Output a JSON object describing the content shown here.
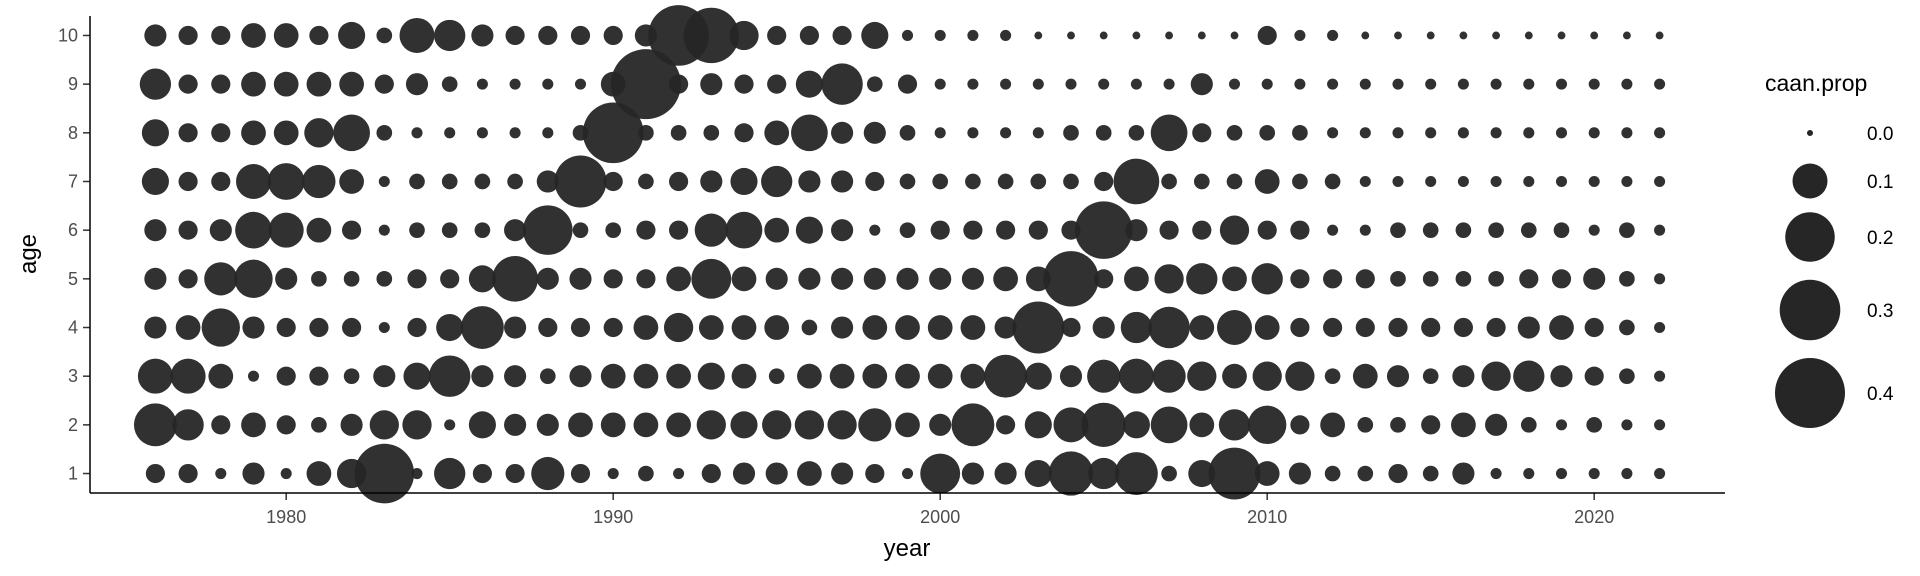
{
  "chart_data": {
    "type": "scatter",
    "xlabel": "year",
    "ylabel": "age",
    "xlim": [
      1974,
      2024
    ],
    "ylim": [
      0.6,
      10.4
    ],
    "x_ticks": [
      1980,
      1990,
      2000,
      2010,
      2020
    ],
    "y_ticks": [
      1,
      2,
      3,
      4,
      5,
      6,
      7,
      8,
      9,
      10
    ],
    "years": [
      1976,
      1977,
      1978,
      1979,
      1980,
      1981,
      1982,
      1983,
      1984,
      1985,
      1986,
      1987,
      1988,
      1989,
      1990,
      1991,
      1992,
      1993,
      1994,
      1995,
      1996,
      1997,
      1998,
      1999,
      2000,
      2001,
      2002,
      2003,
      2004,
      2005,
      2006,
      2007,
      2008,
      2009,
      2010,
      2011,
      2012,
      2013,
      2014,
      2015,
      2016,
      2017,
      2018,
      2019,
      2020,
      2021,
      2022
    ],
    "ages": [
      1,
      2,
      3,
      4,
      5,
      6,
      7,
      8,
      9,
      10
    ],
    "size_variable": "caan.prop",
    "color": "#262626",
    "legend": {
      "title": "caan.prop",
      "position": "right",
      "breaks": [
        0.0,
        0.1,
        0.2,
        0.3,
        0.4
      ],
      "labels": [
        "0.0",
        "0.1",
        "0.2",
        "0.3",
        "0.4"
      ]
    },
    "caan_prop_by_age": [
      [
        0.03,
        0.03,
        0.01,
        0.04,
        0.01,
        0.05,
        0.07,
        0.29,
        0.01,
        0.08,
        0.03,
        0.03,
        0.09,
        0.03,
        0.01,
        0.02,
        0.01,
        0.03,
        0.04,
        0.04,
        0.05,
        0.04,
        0.03,
        0.01,
        0.13,
        0.04,
        0.04,
        0.06,
        0.16,
        0.08,
        0.15,
        0.02,
        0.06,
        0.22,
        0.05,
        0.04,
        0.02,
        0.02,
        0.03,
        0.02,
        0.04,
        0.01,
        0.01,
        0.01,
        0.01,
        0.01,
        0.01
      ],
      [
        0.15,
        0.08,
        0.03,
        0.05,
        0.03,
        0.02,
        0.04,
        0.07,
        0.07,
        0.01,
        0.06,
        0.04,
        0.04,
        0.05,
        0.05,
        0.05,
        0.05,
        0.07,
        0.06,
        0.07,
        0.07,
        0.07,
        0.09,
        0.05,
        0.04,
        0.15,
        0.03,
        0.06,
        0.1,
        0.16,
        0.06,
        0.11,
        0.05,
        0.08,
        0.12,
        0.03,
        0.05,
        0.02,
        0.02,
        0.03,
        0.05,
        0.04,
        0.02,
        0.01,
        0.02,
        0.01,
        0.01
      ],
      [
        0.1,
        0.1,
        0.05,
        0.01,
        0.03,
        0.03,
        0.02,
        0.04,
        0.06,
        0.14,
        0.04,
        0.04,
        0.02,
        0.04,
        0.05,
        0.05,
        0.05,
        0.06,
        0.05,
        0.02,
        0.05,
        0.05,
        0.05,
        0.05,
        0.05,
        0.05,
        0.15,
        0.06,
        0.04,
        0.09,
        0.1,
        0.09,
        0.07,
        0.05,
        0.07,
        0.07,
        0.02,
        0.05,
        0.04,
        0.02,
        0.04,
        0.07,
        0.08,
        0.04,
        0.03,
        0.02,
        0.01
      ],
      [
        0.04,
        0.05,
        0.12,
        0.04,
        0.03,
        0.03,
        0.03,
        0.01,
        0.03,
        0.06,
        0.15,
        0.04,
        0.03,
        0.03,
        0.03,
        0.05,
        0.07,
        0.05,
        0.05,
        0.05,
        0.02,
        0.04,
        0.05,
        0.05,
        0.05,
        0.05,
        0.04,
        0.22,
        0.03,
        0.04,
        0.08,
        0.14,
        0.05,
        0.1,
        0.05,
        0.03,
        0.03,
        0.03,
        0.03,
        0.03,
        0.03,
        0.03,
        0.04,
        0.05,
        0.03,
        0.02,
        0.01
      ],
      [
        0.04,
        0.03,
        0.09,
        0.12,
        0.04,
        0.02,
        0.02,
        0.02,
        0.03,
        0.03,
        0.06,
        0.17,
        0.04,
        0.04,
        0.03,
        0.03,
        0.05,
        0.13,
        0.05,
        0.04,
        0.04,
        0.04,
        0.04,
        0.04,
        0.04,
        0.04,
        0.05,
        0.05,
        0.25,
        0.03,
        0.05,
        0.07,
        0.08,
        0.05,
        0.08,
        0.03,
        0.03,
        0.03,
        0.02,
        0.02,
        0.02,
        0.02,
        0.03,
        0.03,
        0.04,
        0.02,
        0.01
      ],
      [
        0.04,
        0.03,
        0.04,
        0.11,
        0.1,
        0.05,
        0.03,
        0.01,
        0.02,
        0.02,
        0.02,
        0.04,
        0.2,
        0.02,
        0.02,
        0.03,
        0.03,
        0.09,
        0.11,
        0.05,
        0.06,
        0.04,
        0.01,
        0.02,
        0.03,
        0.03,
        0.03,
        0.03,
        0.03,
        0.27,
        0.04,
        0.03,
        0.03,
        0.07,
        0.03,
        0.03,
        0.01,
        0.01,
        0.02,
        0.02,
        0.02,
        0.02,
        0.02,
        0.02,
        0.01,
        0.02,
        0.01
      ],
      [
        0.06,
        0.03,
        0.03,
        0.1,
        0.11,
        0.09,
        0.05,
        0.01,
        0.02,
        0.02,
        0.02,
        0.02,
        0.04,
        0.22,
        0.03,
        0.02,
        0.03,
        0.04,
        0.06,
        0.08,
        0.04,
        0.04,
        0.03,
        0.02,
        0.02,
        0.02,
        0.02,
        0.02,
        0.02,
        0.03,
        0.17,
        0.02,
        0.02,
        0.02,
        0.05,
        0.02,
        0.02,
        0.01,
        0.01,
        0.01,
        0.01,
        0.01,
        0.01,
        0.01,
        0.01,
        0.01,
        0.01
      ],
      [
        0.06,
        0.03,
        0.03,
        0.05,
        0.05,
        0.07,
        0.11,
        0.02,
        0.01,
        0.01,
        0.01,
        0.01,
        0.01,
        0.02,
        0.3,
        0.02,
        0.02,
        0.02,
        0.03,
        0.05,
        0.11,
        0.04,
        0.04,
        0.02,
        0.01,
        0.01,
        0.01,
        0.01,
        0.02,
        0.02,
        0.02,
        0.11,
        0.03,
        0.02,
        0.02,
        0.02,
        0.01,
        0.01,
        0.01,
        0.01,
        0.01,
        0.01,
        0.01,
        0.01,
        0.01,
        0.01,
        0.01
      ],
      [
        0.08,
        0.03,
        0.03,
        0.05,
        0.05,
        0.05,
        0.05,
        0.03,
        0.04,
        0.02,
        0.01,
        0.01,
        0.01,
        0.01,
        0.05,
        0.4,
        0.03,
        0.04,
        0.03,
        0.03,
        0.06,
        0.14,
        0.02,
        0.03,
        0.01,
        0.01,
        0.01,
        0.01,
        0.01,
        0.01,
        0.01,
        0.01,
        0.04,
        0.01,
        0.01,
        0.01,
        0.01,
        0.01,
        0.01,
        0.01,
        0.01,
        0.01,
        0.01,
        0.01,
        0.01,
        0.01,
        0.01
      ],
      [
        0.04,
        0.03,
        0.03,
        0.05,
        0.05,
        0.03,
        0.06,
        0.02,
        0.1,
        0.08,
        0.04,
        0.03,
        0.03,
        0.03,
        0.03,
        0.04,
        0.3,
        0.25,
        0.07,
        0.03,
        0.03,
        0.03,
        0.06,
        0.01,
        0.01,
        0.01,
        0.01,
        0.005,
        0.005,
        0.005,
        0.005,
        0.005,
        0.005,
        0.005,
        0.03,
        0.01,
        0.01,
        0.005,
        0.005,
        0.005,
        0.005,
        0.005,
        0.005,
        0.005,
        0.005,
        0.005,
        0.005
      ]
    ]
  }
}
